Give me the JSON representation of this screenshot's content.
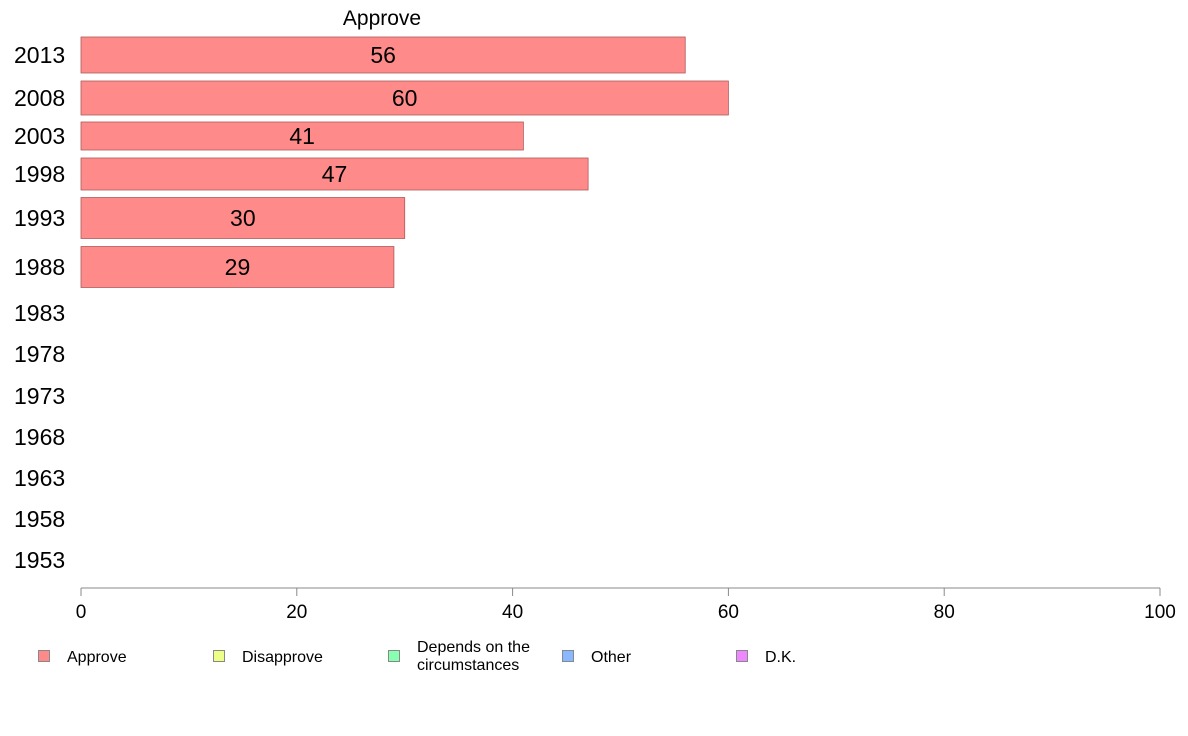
{
  "chart_data": {
    "type": "bar",
    "orientation": "horizontal",
    "title": "Approve",
    "categories": [
      "2013",
      "2008",
      "2003",
      "1998",
      "1993",
      "1988",
      "1983",
      "1978",
      "1973",
      "1968",
      "1963",
      "1958",
      "1953"
    ],
    "series": [
      {
        "name": "Approve",
        "color": "#ff8a8a",
        "values": [
          56,
          60,
          41,
          47,
          30,
          29,
          null,
          null,
          null,
          null,
          null,
          null,
          null
        ],
        "labels": [
          "56",
          "60",
          "41",
          "47",
          "30",
          "29",
          "",
          "",
          "",
          "",
          "",
          "",
          ""
        ]
      }
    ],
    "xlim": [
      0,
      100
    ],
    "x_ticks": [
      "0",
      "20",
      "40",
      "60",
      "80",
      "100"
    ],
    "grid": false,
    "legend_position": "bottom",
    "legend": [
      {
        "label": "Approve",
        "color": "#ff8a8a"
      },
      {
        "label": "Disapprove",
        "color": "#eeff88"
      },
      {
        "label": "Depends on the circumstances",
        "color": "#88ffb0"
      },
      {
        "label": "Other",
        "color": "#88b8ff"
      },
      {
        "label": "D.K.",
        "color": "#ee88ff"
      }
    ]
  }
}
